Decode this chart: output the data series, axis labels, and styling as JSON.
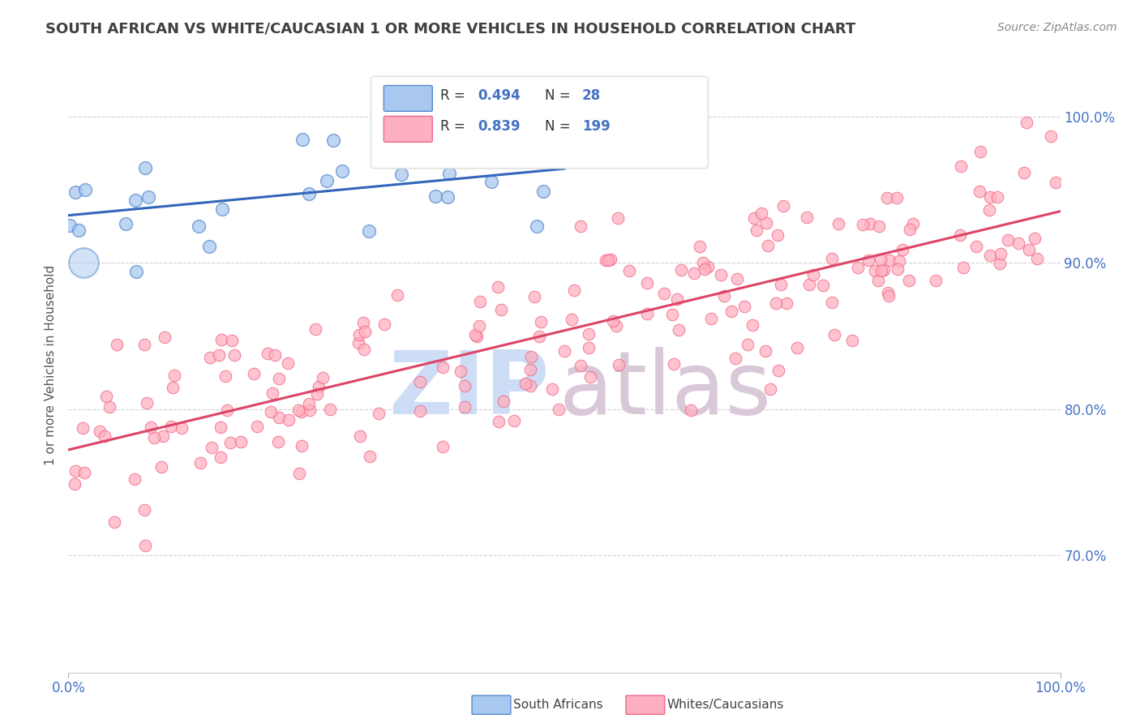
{
  "title": "SOUTH AFRICAN VS WHITE/CAUCASIAN 1 OR MORE VEHICLES IN HOUSEHOLD CORRELATION CHART",
  "source": "Source: ZipAtlas.com",
  "ylabel": "1 or more Vehicles in Household",
  "xlim": [
    0,
    100
  ],
  "ylim": [
    62,
    104
  ],
  "yticks": [
    70.0,
    80.0,
    90.0,
    100.0
  ],
  "background_color": "#ffffff",
  "grid_color": "#cccccc",
  "blue_fill": "#a8c8f0",
  "blue_edge": "#5588cc",
  "pink_fill": "#ffb0c0",
  "pink_edge": "#ee6688",
  "blue_line_color": "#3366bb",
  "pink_line_color": "#dd4466",
  "legend_blue_label": "South Africans",
  "legend_pink_label": "Whites/Caucasians",
  "R_blue": 0.494,
  "N_blue": 28,
  "R_pink": 0.839,
  "N_pink": 199,
  "axis_label_color": "#4472c4",
  "title_color": "#404040",
  "watermark_zip_color": "#ccddf5",
  "watermark_atlas_color": "#d8c8d8"
}
